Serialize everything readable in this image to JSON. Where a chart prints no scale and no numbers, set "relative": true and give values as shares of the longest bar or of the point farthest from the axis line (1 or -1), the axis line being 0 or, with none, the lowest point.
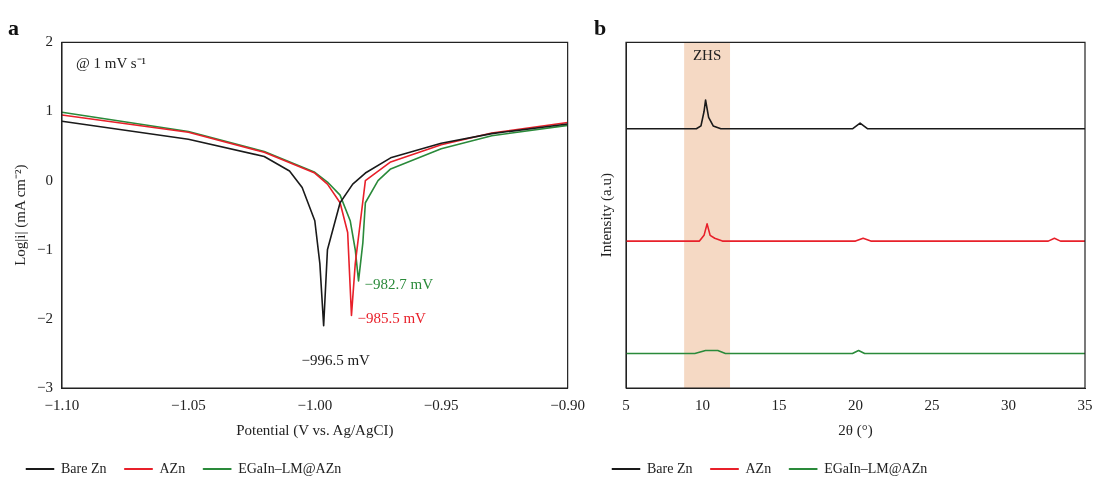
{
  "chart_data": [
    {
      "type": "line",
      "title": "a",
      "xlabel": "Potential (V vs. Ag/AgCI)",
      "ylabel": "Log|i| (mA cm⁻²)",
      "xlim": [
        -1.1,
        -0.9
      ],
      "xticks": [
        {
          "value": -1.1,
          "label": "−1.10"
        },
        {
          "value": -1.05,
          "label": "−1.05"
        },
        {
          "value": -1.0,
          "label": "−1.00"
        },
        {
          "value": -0.95,
          "label": "−0.95"
        },
        {
          "value": -0.9,
          "label": "−0.90"
        }
      ],
      "ylim": [
        -3,
        2
      ],
      "yticks": [
        {
          "value": -3,
          "label": "−3"
        },
        {
          "value": -2,
          "label": "−2"
        },
        {
          "value": -1,
          "label": "−1"
        },
        0,
        1,
        2
      ],
      "legend": "bottom",
      "grid": false,
      "marker": "none",
      "line_style": "solid",
      "series": [
        {
          "name": "Bare Zn",
          "color": "#1a1a1a",
          "x": [
            -1.1,
            -1.05,
            -1.02,
            -1.01,
            -1.005,
            -1.0,
            -0.998,
            -0.9965,
            -0.995,
            -0.99,
            -0.985,
            -0.98,
            -0.97,
            -0.95,
            -0.93,
            -0.9
          ],
          "values": [
            0.86,
            0.6,
            0.35,
            0.14,
            -0.1,
            -0.58,
            -1.2,
            -2.1,
            -1.0,
            -0.32,
            -0.05,
            0.11,
            0.33,
            0.54,
            0.68,
            0.82
          ]
        },
        {
          "name": "AZn",
          "color": "#e8202a",
          "x": [
            -1.1,
            -1.05,
            -1.02,
            -1.0,
            -0.995,
            -0.99,
            -0.987,
            -0.9855,
            -0.984,
            -0.982,
            -0.98,
            -0.97,
            -0.95,
            -0.93,
            -0.9
          ],
          "values": [
            0.95,
            0.7,
            0.41,
            0.11,
            -0.05,
            -0.32,
            -0.75,
            -1.95,
            -1.2,
            -0.6,
            0.0,
            0.27,
            0.52,
            0.69,
            0.84
          ]
        },
        {
          "name": "EGaIn–LM@AZn",
          "color": "#2a8a3a",
          "x": [
            -1.1,
            -1.05,
            -1.02,
            -1.0,
            -0.995,
            -0.99,
            -0.986,
            -0.984,
            -0.9827,
            -0.981,
            -0.98,
            -0.975,
            -0.97,
            -0.95,
            -0.93,
            -0.9
          ],
          "values": [
            0.99,
            0.71,
            0.42,
            0.12,
            -0.02,
            -0.21,
            -0.58,
            -1.0,
            -1.45,
            -0.9,
            -0.32,
            0.0,
            0.17,
            0.46,
            0.65,
            0.8
          ]
        }
      ],
      "annotations": [
        "@ 1 mV s⁻¹",
        {
          "text": "−996.5 mV",
          "x": -0.9965,
          "y": -2.1
        },
        {
          "text": "−985.5 mV",
          "x": -0.9855,
          "y": -1.95
        },
        {
          "text": "−982.7 mV",
          "x": -0.9827,
          "y": -1.45
        }
      ]
    },
    {
      "type": "line",
      "title": "b",
      "xlabel": "2θ (°)",
      "ylabel": "Intensity (a.u)",
      "relative": true,
      "xlim": [
        5,
        35
      ],
      "xticks": [
        5,
        10,
        15,
        20,
        25,
        30,
        35
      ],
      "legend": "bottom",
      "grid": false,
      "marker": "none",
      "line_style": "solid",
      "bands": [
        {
          "axis": "x",
          "from": 8.8,
          "to": 11.8,
          "label": "ZHS",
          "color": "#f5d9c4"
        }
      ],
      "series": [
        {
          "name": "Bare Zn",
          "color": "#1a1a1a",
          "x": [
            5,
            9.6,
            9.9,
            10.1,
            10.2,
            10.4,
            10.7,
            11.2,
            19.8,
            20.3,
            20.8,
            35
          ],
          "values": [
            0.9,
            0.9,
            0.91,
            0.96,
            1.0,
            0.94,
            0.91,
            0.9,
            0.9,
            0.92,
            0.9,
            0.9
          ]
        },
        {
          "name": "AZn",
          "color": "#e8202a",
          "x": [
            5,
            9.8,
            10.1,
            10.3,
            10.5,
            10.8,
            11.3,
            20.0,
            20.5,
            21.0,
            32.6,
            33.0,
            33.4,
            35
          ],
          "values": [
            0.51,
            0.51,
            0.53,
            0.57,
            0.53,
            0.52,
            0.51,
            0.51,
            0.52,
            0.51,
            0.51,
            0.52,
            0.51,
            0.51
          ]
        },
        {
          "name": "EGaIn–LM@AZn",
          "color": "#2a8a3a",
          "x": [
            5,
            9.5,
            10.2,
            11.0,
            11.5,
            19.8,
            20.2,
            20.6,
            35
          ],
          "values": [
            0.12,
            0.12,
            0.13,
            0.13,
            0.12,
            0.12,
            0.13,
            0.12,
            0.12
          ]
        }
      ]
    }
  ]
}
